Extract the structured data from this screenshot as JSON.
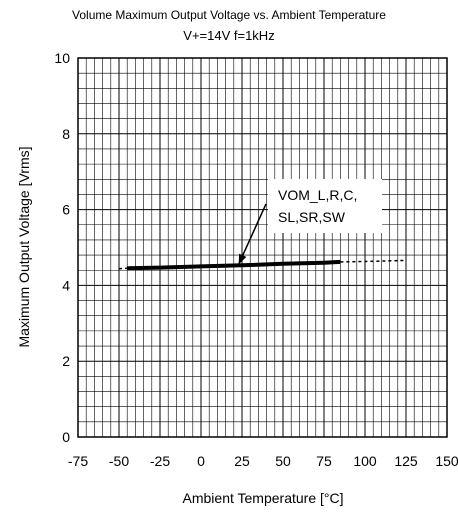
{
  "chart_data": {
    "type": "line",
    "title": "Volume  Maximum Output Voltage vs. Ambient Temperature",
    "subtitle": "V+=14V  f=1kHz",
    "xlabel": "Ambient Temperature [°C]",
    "ylabel": "Maximum Output Voltage [Vrms]",
    "xlim": [
      -75,
      150
    ],
    "ylim": [
      0,
      10
    ],
    "xticks": [
      "-75",
      "-50",
      "-25",
      "0",
      "25",
      "50",
      "75",
      "100",
      "125",
      "150"
    ],
    "yticks": [
      "0",
      "2",
      "4",
      "6",
      "8",
      "10"
    ],
    "grid": true,
    "series": [
      {
        "name": "",
        "style": "solid",
        "x": [
          -45,
          -25,
          0,
          25,
          50,
          75,
          85
        ],
        "y": [
          4.45,
          4.47,
          4.5,
          4.53,
          4.57,
          4.6,
          4.62
        ]
      },
      {
        "name": "",
        "style": "dashed",
        "x": [
          -50,
          -45
        ],
        "y": [
          4.44,
          4.45
        ]
      },
      {
        "name": "",
        "style": "dashed",
        "x": [
          85,
          100,
          125
        ],
        "y": [
          4.62,
          4.63,
          4.66
        ]
      }
    ],
    "annotation": {
      "lines": [
        "VOM_L,R,C,",
        "SL,SR,SW"
      ],
      "target_x": 22,
      "target_y": 4.5
    }
  }
}
